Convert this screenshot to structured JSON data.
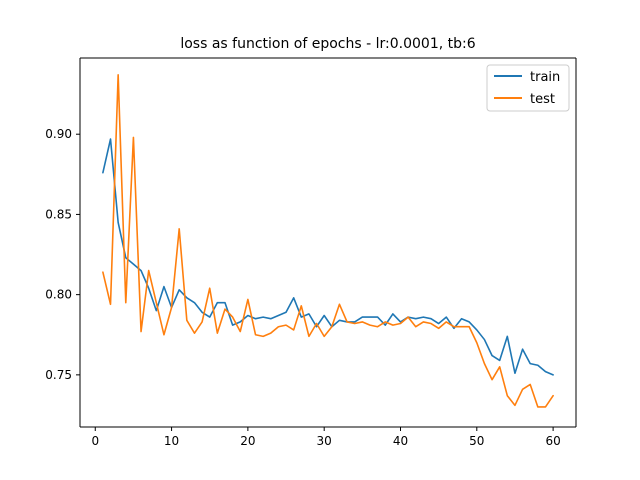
{
  "chart_data": {
    "type": "line",
    "title": "loss as function of epochs - lr:0.0001, tb:6",
    "xlabel": "",
    "ylabel": "",
    "xlim": [
      -2,
      63
    ],
    "ylim": [
      0.7175,
      0.9475
    ],
    "x_ticks": [
      0,
      10,
      20,
      30,
      40,
      50,
      60
    ],
    "y_ticks": [
      0.75,
      0.8,
      0.85,
      0.9
    ],
    "x_tick_labels": [
      "0",
      "10",
      "20",
      "30",
      "40",
      "50",
      "60"
    ],
    "y_tick_labels": [
      "0.75",
      "0.80",
      "0.85",
      "0.90"
    ],
    "grid": false,
    "legend_position": "top-right",
    "x": [
      1,
      2,
      3,
      4,
      5,
      6,
      7,
      8,
      9,
      10,
      11,
      12,
      13,
      14,
      15,
      16,
      17,
      18,
      19,
      20,
      21,
      22,
      23,
      24,
      25,
      26,
      27,
      28,
      29,
      30,
      31,
      32,
      33,
      34,
      35,
      36,
      37,
      38,
      39,
      40,
      41,
      42,
      43,
      44,
      45,
      46,
      47,
      48,
      49,
      50,
      51,
      52,
      53,
      54,
      55,
      56,
      57,
      58,
      59,
      60
    ],
    "series": [
      {
        "name": "train",
        "color": "#1f77b4",
        "values": [
          0.876,
          0.897,
          0.845,
          0.823,
          0.819,
          0.815,
          0.804,
          0.79,
          0.805,
          0.792,
          0.803,
          0.798,
          0.795,
          0.789,
          0.786,
          0.795,
          0.795,
          0.781,
          0.783,
          0.787,
          0.785,
          0.786,
          0.785,
          0.787,
          0.789,
          0.798,
          0.786,
          0.788,
          0.78,
          0.787,
          0.78,
          0.784,
          0.783,
          0.783,
          0.786,
          0.786,
          0.786,
          0.781,
          0.788,
          0.783,
          0.786,
          0.785,
          0.786,
          0.785,
          0.782,
          0.786,
          0.779,
          0.785,
          0.783,
          0.778,
          0.772,
          0.762,
          0.759,
          0.774,
          0.751,
          0.766,
          0.757,
          0.756,
          0.752,
          0.75
        ]
      },
      {
        "name": "test",
        "color": "#ff7f0e",
        "values": [
          0.814,
          0.794,
          0.937,
          0.795,
          0.898,
          0.777,
          0.815,
          0.795,
          0.775,
          0.792,
          0.841,
          0.784,
          0.776,
          0.783,
          0.804,
          0.776,
          0.791,
          0.786,
          0.777,
          0.797,
          0.775,
          0.774,
          0.776,
          0.78,
          0.781,
          0.778,
          0.793,
          0.774,
          0.782,
          0.774,
          0.78,
          0.794,
          0.783,
          0.782,
          0.783,
          0.781,
          0.78,
          0.783,
          0.781,
          0.782,
          0.786,
          0.78,
          0.783,
          0.782,
          0.779,
          0.783,
          0.78,
          0.78,
          0.78,
          0.77,
          0.757,
          0.747,
          0.755,
          0.737,
          0.731,
          0.741,
          0.744,
          0.73,
          0.73,
          0.737
        ]
      }
    ]
  }
}
